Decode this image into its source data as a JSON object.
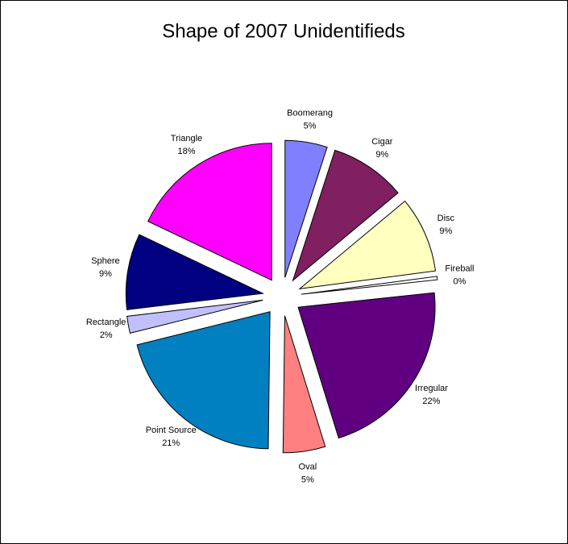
{
  "chart_data": {
    "type": "pie",
    "title": "Shape of 2007 Unidentifieds",
    "categories": [
      "Boomerang",
      "Cigar",
      "Disc",
      "Fireball",
      "Irregular",
      "Oval",
      "Point Source",
      "Rectangle",
      "Sphere",
      "Triangle"
    ],
    "values": [
      5,
      9,
      9,
      0.4,
      22,
      5,
      21,
      2,
      9,
      18
    ],
    "value_labels": [
      "5%",
      "9%",
      "9%",
      "0%",
      "22%",
      "5%",
      "21%",
      "2%",
      "9%",
      "18%"
    ],
    "colors": [
      "#8080ff",
      "#802060",
      "#ffffc0",
      "#ffffff",
      "#600080",
      "#ff8080",
      "#0080c0",
      "#c0c0ff",
      "#000080",
      "#ff00ff"
    ]
  }
}
